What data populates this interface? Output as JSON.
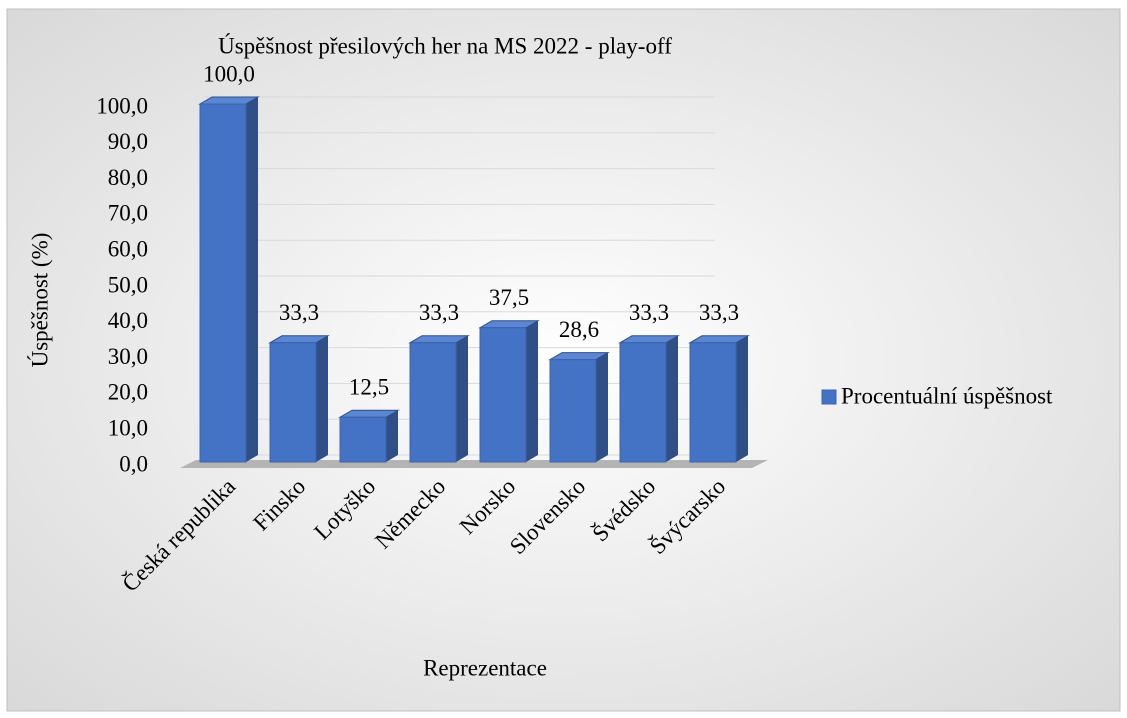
{
  "chart_data": {
    "type": "bar3d",
    "title": "Úspěšnost přesilových her na MS 2022 - play-off",
    "x_label": "Reprezentace",
    "y_label": "Úspěšnost (%)",
    "categories": [
      "Česká republika",
      "Finsko",
      "Lotyško",
      "Německo",
      "Norsko",
      "Slovensko",
      "Švédsko",
      "Švýcarsko"
    ],
    "series": [
      {
        "name": "Procentuální úspěšnost",
        "color": "#4472c4",
        "values": [
          100,
          33.3,
          12.5,
          33.3,
          37.5,
          28.6,
          33.3,
          33.3
        ],
        "value_labels": [
          "100,0",
          "33,3",
          "12,5",
          "33,3",
          "37,5",
          "28,6",
          "33,3",
          "33,3"
        ]
      }
    ],
    "ylim": [
      0,
      100
    ],
    "yticks": [
      {
        "value": 0,
        "label": "0,0"
      },
      {
        "value": 10,
        "label": "10,0"
      },
      {
        "value": 20,
        "label": "20,0"
      },
      {
        "value": 30,
        "label": "30,0"
      },
      {
        "value": 40,
        "label": "40,0"
      },
      {
        "value": 50,
        "label": "50,0"
      },
      {
        "value": 60,
        "label": "60,0"
      },
      {
        "value": 70,
        "label": "70,0"
      },
      {
        "value": 80,
        "label": "80,0"
      },
      {
        "value": 90,
        "label": "90,0"
      },
      {
        "value": 100,
        "label": "100,0"
      }
    ],
    "grid": true,
    "legend": "right"
  }
}
